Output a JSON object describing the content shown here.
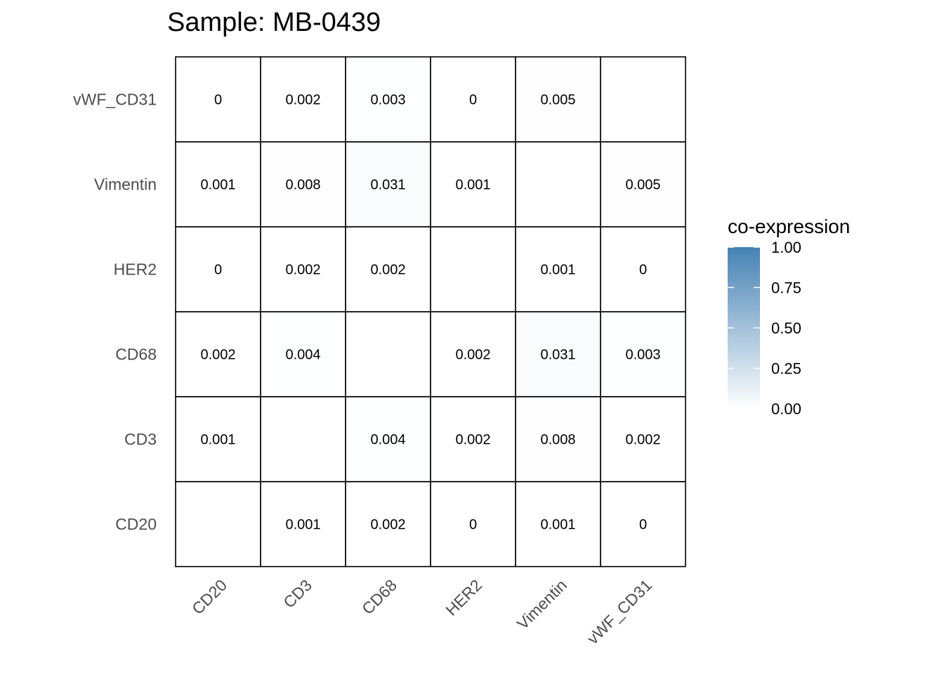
{
  "chart_data": {
    "type": "heatmap",
    "title": "Sample: MB-0439",
    "x_categories": [
      "CD20",
      "CD3",
      "CD68",
      "HER2",
      "Vimentin",
      "vWF_CD31"
    ],
    "y_categories": [
      "CD20",
      "CD3",
      "CD68",
      "HER2",
      "Vimentin",
      "vWF_CD31"
    ],
    "cells": [
      {
        "x": "CD20",
        "y": "CD20",
        "value": null,
        "label": ""
      },
      {
        "x": "CD3",
        "y": "CD20",
        "value": 0.001,
        "label": "0.001"
      },
      {
        "x": "CD68",
        "y": "CD20",
        "value": 0.002,
        "label": "0.002"
      },
      {
        "x": "HER2",
        "y": "CD20",
        "value": 0,
        "label": "0"
      },
      {
        "x": "Vimentin",
        "y": "CD20",
        "value": 0.001,
        "label": "0.001"
      },
      {
        "x": "vWF_CD31",
        "y": "CD20",
        "value": 0,
        "label": "0"
      },
      {
        "x": "CD20",
        "y": "CD3",
        "value": 0.001,
        "label": "0.001"
      },
      {
        "x": "CD3",
        "y": "CD3",
        "value": null,
        "label": ""
      },
      {
        "x": "CD68",
        "y": "CD3",
        "value": 0.004,
        "label": "0.004"
      },
      {
        "x": "HER2",
        "y": "CD3",
        "value": 0.002,
        "label": "0.002"
      },
      {
        "x": "Vimentin",
        "y": "CD3",
        "value": 0.008,
        "label": "0.008"
      },
      {
        "x": "vWF_CD31",
        "y": "CD3",
        "value": 0.002,
        "label": "0.002"
      },
      {
        "x": "CD20",
        "y": "CD68",
        "value": 0.002,
        "label": "0.002"
      },
      {
        "x": "CD3",
        "y": "CD68",
        "value": 0.004,
        "label": "0.004"
      },
      {
        "x": "CD68",
        "y": "CD68",
        "value": null,
        "label": ""
      },
      {
        "x": "HER2",
        "y": "CD68",
        "value": 0.002,
        "label": "0.002"
      },
      {
        "x": "Vimentin",
        "y": "CD68",
        "value": 0.031,
        "label": "0.031"
      },
      {
        "x": "vWF_CD31",
        "y": "CD68",
        "value": 0.003,
        "label": "0.003"
      },
      {
        "x": "CD20",
        "y": "HER2",
        "value": 0,
        "label": "0"
      },
      {
        "x": "CD3",
        "y": "HER2",
        "value": 0.002,
        "label": "0.002"
      },
      {
        "x": "CD68",
        "y": "HER2",
        "value": 0.002,
        "label": "0.002"
      },
      {
        "x": "HER2",
        "y": "HER2",
        "value": null,
        "label": ""
      },
      {
        "x": "Vimentin",
        "y": "HER2",
        "value": 0.001,
        "label": "0.001"
      },
      {
        "x": "vWF_CD31",
        "y": "HER2",
        "value": 0,
        "label": "0"
      },
      {
        "x": "CD20",
        "y": "Vimentin",
        "value": 0.001,
        "label": "0.001"
      },
      {
        "x": "CD3",
        "y": "Vimentin",
        "value": 0.008,
        "label": "0.008"
      },
      {
        "x": "CD68",
        "y": "Vimentin",
        "value": 0.031,
        "label": "0.031"
      },
      {
        "x": "HER2",
        "y": "Vimentin",
        "value": 0.001,
        "label": "0.001"
      },
      {
        "x": "Vimentin",
        "y": "Vimentin",
        "value": null,
        "label": ""
      },
      {
        "x": "vWF_CD31",
        "y": "Vimentin",
        "value": 0.005,
        "label": "0.005"
      },
      {
        "x": "CD20",
        "y": "vWF_CD31",
        "value": 0,
        "label": "0"
      },
      {
        "x": "CD3",
        "y": "vWF_CD31",
        "value": 0.002,
        "label": "0.002"
      },
      {
        "x": "CD68",
        "y": "vWF_CD31",
        "value": 0.003,
        "label": "0.003"
      },
      {
        "x": "HER2",
        "y": "vWF_CD31",
        "value": 0,
        "label": "0"
      },
      {
        "x": "Vimentin",
        "y": "vWF_CD31",
        "value": 0.005,
        "label": "0.005"
      },
      {
        "x": "vWF_CD31",
        "y": "vWF_CD31",
        "value": null,
        "label": ""
      }
    ],
    "legend": {
      "title": "co-expression",
      "position": "right",
      "range": [
        0,
        1
      ],
      "ticks": [
        {
          "value": 1.0,
          "label": "1.00"
        },
        {
          "value": 0.75,
          "label": "0.75"
        },
        {
          "value": 0.5,
          "label": "0.50"
        },
        {
          "value": 0.25,
          "label": "0.25"
        },
        {
          "value": 0.0,
          "label": "0.00"
        }
      ],
      "color_low": "#ffffff",
      "color_high": "#4682b4"
    },
    "grid": false
  }
}
